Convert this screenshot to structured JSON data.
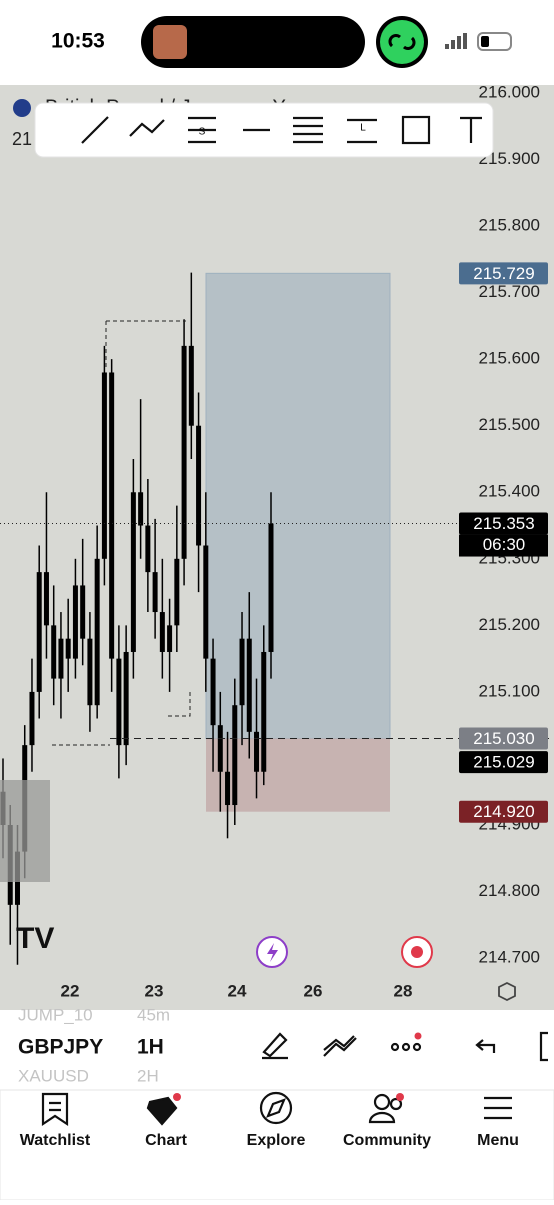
{
  "status": {
    "time": "10:53"
  },
  "chart": {
    "symbol_title": "British Pound / Japanese Yen",
    "price_prefix": "21",
    "ylim": [
      214.625,
      216.012
    ],
    "yticks": [
      {
        "value": 216,
        "label": "216.000"
      },
      {
        "value": 215.9,
        "label": "215.900"
      },
      {
        "value": 215.8,
        "label": "215.800"
      },
      {
        "value": 215.7,
        "label": "215.700"
      },
      {
        "value": 215.6,
        "label": "215.600"
      },
      {
        "value": 215.5,
        "label": "215.500"
      },
      {
        "value": 215.4,
        "label": "215.400"
      },
      {
        "value": 215.3,
        "label": "215.300"
      },
      {
        "value": 215.2,
        "label": "215.200"
      },
      {
        "value": 215.1,
        "label": "215.100"
      },
      {
        "value": 214.9,
        "label": "214.900"
      },
      {
        "value": 214.8,
        "label": "214.800"
      },
      {
        "value": 214.7,
        "label": "214.700"
      }
    ],
    "candles": {
      "open": [
        214.95,
        214.9,
        214.78,
        214.86,
        215.02,
        215.1,
        215.28,
        215.2,
        215.12,
        215.18,
        215.15,
        215.26,
        215.18,
        215.08,
        215.3,
        215.58,
        215.15,
        215.02,
        215.16,
        215.4,
        215.35,
        215.28,
        215.22,
        215.16,
        215.2,
        215.3,
        215.62,
        215.5,
        215.32,
        215.15,
        215.05,
        214.98,
        214.93,
        215.08,
        215.18,
        215.04,
        214.98,
        215.16
      ],
      "high": [
        215.0,
        214.93,
        214.9,
        215.05,
        215.15,
        215.32,
        215.4,
        215.26,
        215.22,
        215.24,
        215.3,
        215.33,
        215.22,
        215.35,
        215.62,
        215.6,
        215.2,
        215.2,
        215.45,
        215.54,
        215.42,
        215.36,
        215.3,
        215.24,
        215.38,
        215.66,
        215.73,
        215.55,
        215.4,
        215.18,
        215.1,
        215.04,
        215.12,
        215.22,
        215.25,
        215.12,
        215.2,
        215.4
      ],
      "low": [
        214.85,
        214.72,
        214.69,
        214.82,
        214.98,
        215.06,
        215.15,
        215.08,
        215.06,
        215.1,
        215.12,
        215.14,
        215.04,
        215.06,
        215.26,
        215.1,
        214.97,
        214.99,
        215.12,
        215.3,
        215.22,
        215.18,
        215.12,
        215.1,
        215.16,
        215.26,
        215.45,
        215.25,
        215.1,
        214.98,
        214.92,
        214.88,
        214.9,
        215.02,
        215.0,
        214.94,
        214.96,
        215.12
      ],
      "close": [
        214.9,
        214.78,
        214.86,
        215.02,
        215.1,
        215.28,
        215.2,
        215.12,
        215.18,
        215.15,
        215.26,
        215.18,
        215.08,
        215.3,
        215.58,
        215.15,
        215.02,
        215.16,
        215.4,
        215.35,
        215.28,
        215.22,
        215.16,
        215.2,
        215.3,
        215.62,
        215.5,
        215.32,
        215.15,
        215.05,
        214.98,
        214.93,
        215.08,
        215.18,
        215.04,
        214.98,
        215.16,
        215.353
      ]
    },
    "last": {
      "value": 215.353,
      "label": "215.353"
    },
    "countdown": "06:30",
    "target": {
      "value": 215.729,
      "label": "215.729"
    },
    "entry": {
      "value": 215.03,
      "label": "215.030"
    },
    "bid": {
      "value": 215.029,
      "label": "215.029"
    },
    "stop": {
      "value": 214.92,
      "label": "214.920"
    },
    "x_labels": [
      "22",
      "23",
      "24",
      "26",
      "28"
    ]
  },
  "symbols": [
    {
      "name": "JUMP_10",
      "interval": "45m"
    },
    {
      "name": "GBPJPY",
      "interval": "1H"
    },
    {
      "name": "XAUUSD",
      "interval": "2H"
    }
  ],
  "tabs": [
    "Watchlist",
    "Chart",
    "Explore",
    "Community",
    "Menu"
  ]
}
